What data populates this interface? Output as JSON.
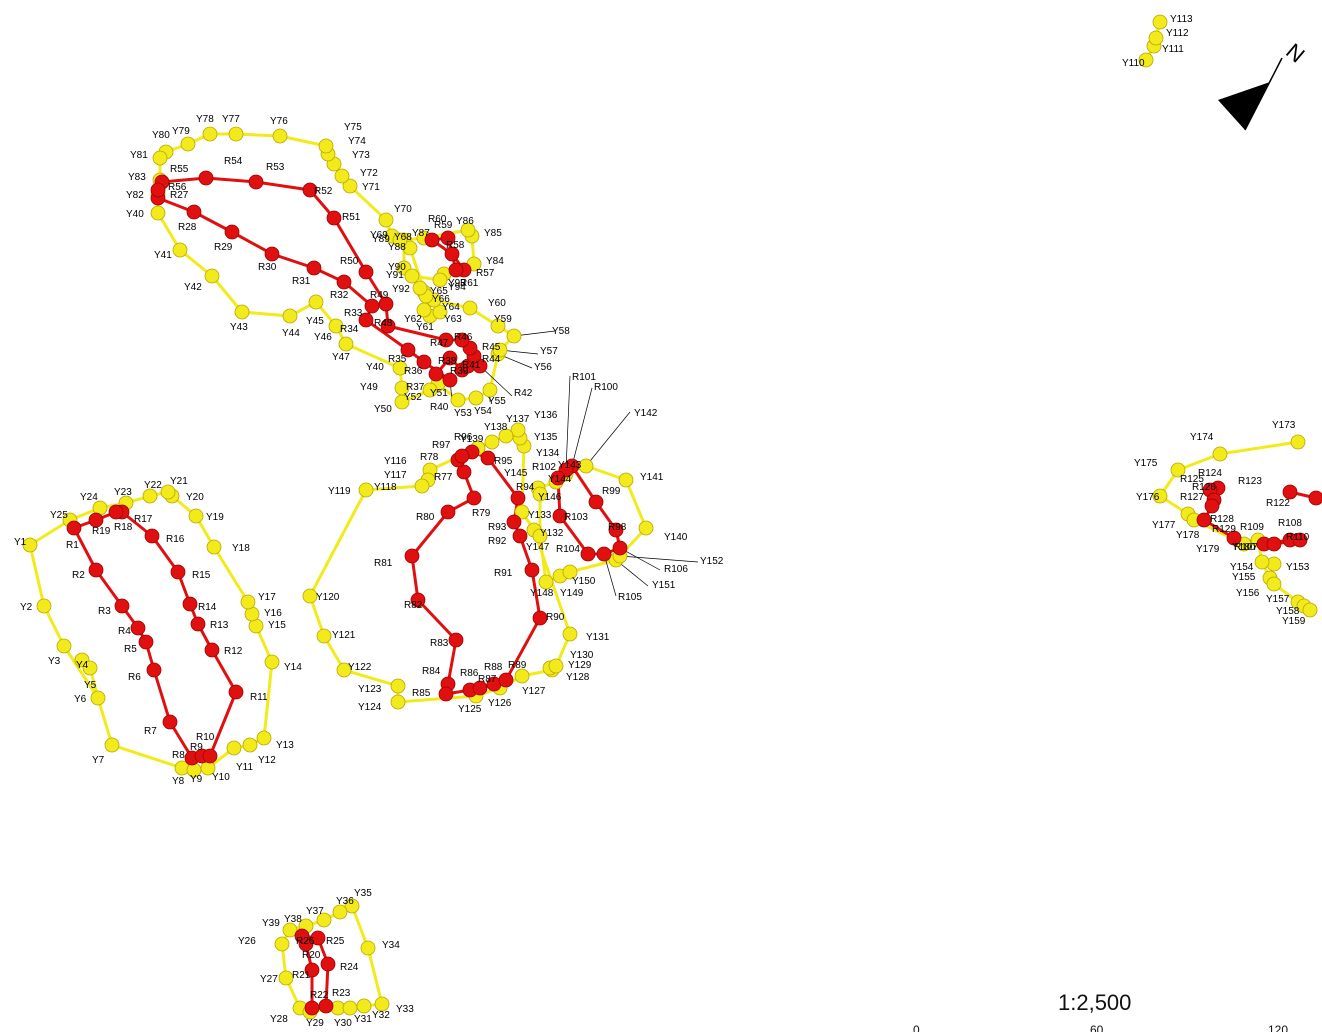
{
  "map": {
    "scale": "1:2,500",
    "scale_ticks": [
      "0",
      "60",
      "120"
    ],
    "north_symbol": "N",
    "colors": {
      "yellow_route": "#f2ea1a",
      "red_route": "#e01010",
      "yellow_stroke": "#b8a800",
      "red_stroke": "#a00000"
    },
    "points": {
      "Y1": "Y1",
      "Y2": "Y2",
      "Y3": "Y3",
      "Y4": "Y4",
      "Y5": "Y5",
      "Y6": "Y6",
      "Y7": "Y7",
      "Y8": "Y8",
      "Y9": "Y9",
      "Y10": "Y10",
      "Y11": "Y11",
      "Y12": "Y12",
      "Y13": "Y13",
      "Y14": "Y14",
      "Y15": "Y15",
      "Y16": "Y16",
      "Y17": "Y17",
      "Y18": "Y18",
      "Y19": "Y19",
      "Y20": "Y20",
      "Y21": "Y21",
      "Y22": "Y22",
      "Y23": "Y23",
      "Y24": "Y24",
      "Y25": "Y25",
      "Y26": "Y26",
      "Y27": "Y27",
      "Y28": "Y28",
      "Y29": "Y29",
      "Y30": "Y30",
      "Y31": "Y31",
      "Y32": "Y32",
      "Y33": "Y33",
      "Y34": "Y34",
      "Y35": "Y35",
      "Y36": "Y36",
      "Y37": "Y37",
      "Y38": "Y38",
      "Y39": "Y39",
      "Y40": "Y40",
      "Y41": "Y41",
      "Y42": "Y42",
      "Y43": "Y43",
      "Y44": "Y44",
      "Y45": "Y45",
      "Y46": "Y46",
      "Y47": "Y47",
      "Y40b": "Y40",
      "Y49": "Y49",
      "Y50": "Y50",
      "Y51": "Y51",
      "Y52": "Y52",
      "Y53": "Y53",
      "Y54": "Y54",
      "Y55": "Y55",
      "Y56": "Y56",
      "Y57": "Y57",
      "Y58": "Y58",
      "Y59": "Y59",
      "Y60": "Y60",
      "Y61": "Y61",
      "Y62": "Y62",
      "Y63": "Y63",
      "Y64": "Y64",
      "Y65": "Y65",
      "Y66": "Y66",
      "Y68": "Y68",
      "Y69": "Y69",
      "Y70": "Y70",
      "Y71": "Y71",
      "Y72": "Y72",
      "Y73": "Y73",
      "Y74": "Y74",
      "Y75": "Y75",
      "Y76": "Y76",
      "Y77": "Y77",
      "Y78": "Y78",
      "Y79": "Y79",
      "Y80": "Y80",
      "Y81": "Y81",
      "Y82": "Y82",
      "Y83": "Y83",
      "Y84": "Y84",
      "Y85": "Y85",
      "Y86": "Y86",
      "Y87": "Y87",
      "Y88": "Y88",
      "Y89": "Y89",
      "Y90": "Y90",
      "Y91": "Y91",
      "Y92": "Y92",
      "Y93": "Y93",
      "Y94": "Y94",
      "Y110": "Y110",
      "Y111": "Y111",
      "Y112": "Y112",
      "Y113": "Y113",
      "Y116": "Y116",
      "Y117": "Y117",
      "Y118": "Y118",
      "Y119": "Y119",
      "Y120": "Y120",
      "Y121": "Y121",
      "Y122": "Y122",
      "Y123": "Y123",
      "Y124": "Y124",
      "Y125": "Y125",
      "Y126": "Y126",
      "Y127": "Y127",
      "Y128": "Y128",
      "Y129": "Y129",
      "Y130": "Y130",
      "Y131": "Y131",
      "Y132": "Y132",
      "Y133": "Y133",
      "Y134": "Y134",
      "Y135": "Y135",
      "Y136": "Y136",
      "Y137": "Y137",
      "Y138": "Y138",
      "Y139": "Y139",
      "Y140": "Y140",
      "Y141": "Y141",
      "Y142": "Y142",
      "Y143": "Y143",
      "Y144": "Y144",
      "Y145": "Y145",
      "Y146": "Y146",
      "Y147": "Y147",
      "Y148": "Y148",
      "Y149": "Y149",
      "Y150": "Y150",
      "Y151": "Y151",
      "Y152": "Y152",
      "Y153": "Y153",
      "Y154": "Y154",
      "Y155": "Y155",
      "Y156": "Y156",
      "Y157": "Y157",
      "Y158": "Y158",
      "Y159": "Y159",
      "Y173": "Y173",
      "Y174": "Y174",
      "Y175": "Y175",
      "Y176": "Y176",
      "Y177": "Y177",
      "Y178": "Y178",
      "Y179": "Y179",
      "Y180": "Y180",
      "R1": "R1",
      "R2": "R2",
      "R3": "R3",
      "R4": "R4",
      "R5": "R5",
      "R6": "R6",
      "R7": "R7",
      "R8": "R8",
      "R9": "R9",
      "R10": "R10",
      "R11": "R11",
      "R12": "R12",
      "R13": "R13",
      "R14": "R14",
      "R15": "R15",
      "R16": "R16",
      "R17": "R17",
      "R18": "R18",
      "R19": "R19",
      "R20": "R20",
      "R21": "R21",
      "R22": "R22",
      "R23": "R23",
      "R24": "R24",
      "R25": "R25",
      "R26": "R26",
      "R27": "R27",
      "R28": "R28",
      "R29": "R29",
      "R30": "R30",
      "R31": "R31",
      "R32": "R32",
      "R33": "R33",
      "R34": "R34",
      "R35": "R35",
      "R36": "R36",
      "R37": "R37",
      "R38": "R38",
      "R39": "R39",
      "R40": "R40",
      "R41": "R41",
      "R42": "R42",
      "R44": "R44",
      "R45": "R45",
      "R46": "R46",
      "R47": "R47",
      "R48": "R48",
      "R49": "R49",
      "R50": "R50",
      "R51": "R51",
      "R52": "R52",
      "R53": "R53",
      "R54": "R54",
      "R55": "R55",
      "R56": "R56",
      "R57": "R57",
      "R58": "R58",
      "R59": "R59",
      "R60": "R60",
      "R61": "R61",
      "R77": "R77",
      "R78": "R78",
      "R79": "R79",
      "R80": "R80",
      "R81": "R81",
      "R82": "R82",
      "R83": "R83",
      "R84": "R84",
      "R85": "R85",
      "R86": "R86",
      "R87": "R87",
      "R88": "R88",
      "R89": "R89",
      "R90": "R90",
      "R91": "R91",
      "R92": "R92",
      "R93": "R93",
      "R94": "R94",
      "R95": "R95",
      "R96": "R96",
      "R97": "R97",
      "R98": "R98",
      "R99": "R99",
      "R100": "R100",
      "R101": "R101",
      "R102": "R102",
      "R103": "R103",
      "R104": "R104",
      "R105": "R105",
      "R106": "R106",
      "R107": "R107",
      "R108": "R108",
      "R109": "R109",
      "R110": "R110",
      "R122": "R122",
      "R123": "R123",
      "R124": "R124",
      "R125": "R125",
      "R126": "R126",
      "R127": "R127",
      "R128": "R128",
      "R129": "R129"
    }
  }
}
